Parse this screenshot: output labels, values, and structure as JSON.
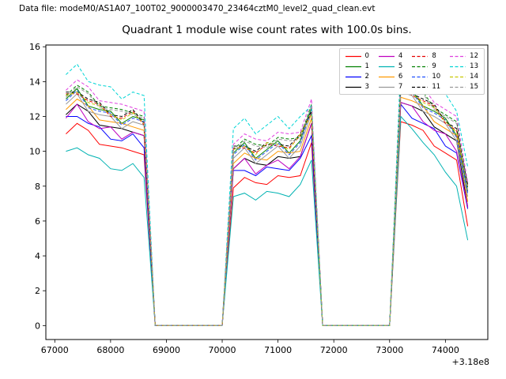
{
  "header": {
    "data_file_label": "Data file: modeM0/AS1A07_100T02_9000003470_23464cztM0_level2_quad_clean.evt"
  },
  "chart_data": {
    "type": "line",
    "title": "Quadrant 1 module wise count rates with 100.0s bins.",
    "xlabel": "",
    "ylabel": "",
    "x_offset_label": "+3.18e8",
    "xlim": [
      66840,
      74760
    ],
    "ylim": [
      -0.8,
      16.1
    ],
    "x_ticks": [
      67000,
      68000,
      69000,
      70000,
      71000,
      72000,
      73000,
      74000
    ],
    "y_ticks": [
      0,
      2,
      4,
      6,
      8,
      10,
      12,
      14,
      16
    ],
    "grid": false,
    "legend_position": "upper right",
    "legend_columns": 4,
    "x": [
      67200,
      67400,
      67600,
      67800,
      68000,
      68200,
      68400,
      68600,
      68800,
      69000,
      69200,
      69400,
      69600,
      69800,
      70000,
      70200,
      70400,
      70600,
      70800,
      71000,
      71200,
      71400,
      71600,
      71800,
      72000,
      72200,
      72400,
      72600,
      72800,
      73000,
      73200,
      73400,
      73600,
      73800,
      74000,
      74200,
      74400
    ],
    "series": [
      {
        "name": "0",
        "color": "#ff0000",
        "dash": "solid",
        "values": [
          11.0,
          11.6,
          11.2,
          10.4,
          10.3,
          10.2,
          10.0,
          9.8,
          0,
          0,
          0,
          0,
          0,
          0,
          0,
          7.9,
          8.5,
          8.2,
          8.1,
          8.6,
          8.5,
          8.6,
          10.5,
          0,
          0,
          0,
          0,
          0,
          0,
          0,
          11.7,
          11.5,
          11.2,
          10.3,
          9.9,
          9.5,
          5.7
        ]
      },
      {
        "name": "1",
        "color": "#008000",
        "dash": "solid",
        "values": [
          13.0,
          13.6,
          12.6,
          12.4,
          12.3,
          11.6,
          12.0,
          11.8,
          0,
          0,
          0,
          0,
          0,
          0,
          0,
          9.9,
          10.5,
          9.6,
          10.1,
          10.6,
          9.9,
          10.6,
          12.5,
          0,
          0,
          0,
          0,
          0,
          0,
          0,
          13.7,
          13.5,
          12.6,
          12.3,
          11.9,
          10.9,
          7.7
        ]
      },
      {
        "name": "2",
        "color": "#0000ff",
        "dash": "solid",
        "values": [
          12.0,
          12.0,
          11.6,
          11.4,
          10.7,
          10.6,
          11.0,
          10.2,
          0,
          0,
          0,
          0,
          0,
          0,
          0,
          8.9,
          8.9,
          8.6,
          9.1,
          9.0,
          8.9,
          9.6,
          10.9,
          0,
          0,
          0,
          0,
          0,
          0,
          0,
          12.7,
          11.9,
          11.6,
          11.3,
          10.3,
          9.9,
          6.7
        ]
      },
      {
        "name": "3",
        "color": "#000000",
        "dash": "solid",
        "values": [
          12.1,
          12.7,
          12.3,
          11.5,
          11.4,
          11.3,
          11.1,
          10.9,
          0,
          0,
          0,
          0,
          0,
          0,
          0,
          9.0,
          9.6,
          9.3,
          9.2,
          9.7,
          9.6,
          9.7,
          11.6,
          0,
          0,
          0,
          0,
          0,
          0,
          0,
          12.8,
          12.6,
          12.3,
          11.4,
          11.0,
          10.6,
          6.8
        ]
      },
      {
        "name": "4",
        "color": "#bf00bf",
        "dash": "solid",
        "values": [
          11.9,
          12.7,
          11.7,
          11.3,
          11.4,
          10.7,
          11.1,
          10.9,
          0,
          0,
          0,
          0,
          0,
          0,
          0,
          9.0,
          9.6,
          8.7,
          9.2,
          9.5,
          9.0,
          9.7,
          11.6,
          0,
          0,
          0,
          0,
          0,
          0,
          0,
          12.8,
          12.6,
          11.7,
          11.2,
          11.0,
          10.0,
          6.8
        ]
      },
      {
        "name": "5",
        "color": "#00b2b2",
        "dash": "solid",
        "values": [
          10.0,
          10.2,
          9.8,
          9.6,
          9.0,
          8.9,
          9.3,
          8.5,
          0,
          0,
          0,
          0,
          0,
          0,
          0,
          7.4,
          7.6,
          7.2,
          7.7,
          7.6,
          7.4,
          8.1,
          9.5,
          0,
          0,
          0,
          0,
          0,
          0,
          0,
          12.0,
          11.3,
          10.5,
          9.8,
          8.8,
          8.0,
          4.9
        ]
      },
      {
        "name": "6",
        "color": "#ff9900",
        "dash": "solid",
        "values": [
          12.4,
          13.0,
          12.6,
          11.8,
          11.7,
          11.6,
          11.4,
          11.2,
          0,
          0,
          0,
          0,
          0,
          0,
          0,
          9.3,
          9.9,
          9.6,
          9.5,
          10.0,
          9.9,
          10.0,
          11.9,
          0,
          0,
          0,
          0,
          0,
          0,
          0,
          13.1,
          12.9,
          12.6,
          11.7,
          11.3,
          10.9,
          7.1
        ]
      },
      {
        "name": "7",
        "color": "#999999",
        "dash": "solid",
        "values": [
          12.7,
          13.3,
          12.3,
          12.1,
          12.0,
          11.3,
          11.7,
          11.5,
          0,
          0,
          0,
          0,
          0,
          0,
          0,
          9.6,
          10.2,
          9.3,
          9.8,
          10.3,
          9.6,
          10.3,
          12.2,
          0,
          0,
          0,
          0,
          0,
          0,
          0,
          13.4,
          13.2,
          12.3,
          12.0,
          11.6,
          10.6,
          7.4
        ]
      },
      {
        "name": "8",
        "color": "#e60000",
        "dash": "dashed",
        "values": [
          13.3,
          13.3,
          12.9,
          12.7,
          12.0,
          11.9,
          12.3,
          11.5,
          0,
          0,
          0,
          0,
          0,
          0,
          0,
          10.2,
          10.2,
          9.9,
          10.4,
          10.3,
          10.2,
          10.9,
          12.2,
          0,
          0,
          0,
          0,
          0,
          0,
          0,
          14.0,
          13.2,
          12.9,
          12.6,
          11.6,
          11.2,
          8.0
        ]
      },
      {
        "name": "9",
        "color": "#008000",
        "dash": "dashed",
        "values": [
          13.2,
          13.8,
          13.4,
          12.6,
          12.5,
          12.4,
          12.2,
          12.0,
          0,
          0,
          0,
          0,
          0,
          0,
          0,
          10.1,
          10.7,
          10.4,
          10.3,
          10.8,
          10.7,
          10.8,
          12.7,
          0,
          0,
          0,
          0,
          0,
          0,
          0,
          13.9,
          13.7,
          13.4,
          12.5,
          12.1,
          11.7,
          7.9
        ]
      },
      {
        "name": "10",
        "color": "#1f50ff",
        "dash": "dashed",
        "values": [
          12.9,
          13.5,
          12.5,
          12.3,
          12.2,
          11.5,
          11.9,
          11.7,
          0,
          0,
          0,
          0,
          0,
          0,
          0,
          9.8,
          10.4,
          9.5,
          10.0,
          10.5,
          9.8,
          10.5,
          12.4,
          0,
          0,
          0,
          0,
          0,
          0,
          0,
          13.6,
          13.4,
          12.5,
          12.2,
          11.8,
          10.8,
          7.6
        ]
      },
      {
        "name": "11",
        "color": "#000000",
        "dash": "dashed",
        "values": [
          13.4,
          13.4,
          13.0,
          12.8,
          12.1,
          12.0,
          12.4,
          11.6,
          0,
          0,
          0,
          0,
          0,
          0,
          0,
          10.3,
          10.3,
          10.0,
          10.5,
          10.4,
          10.3,
          11.0,
          12.3,
          0,
          0,
          0,
          0,
          0,
          0,
          0,
          14.1,
          13.3,
          13.0,
          12.7,
          11.7,
          11.3,
          8.1
        ]
      },
      {
        "name": "12",
        "color": "#e040e0",
        "dash": "dashed",
        "values": [
          13.5,
          14.1,
          13.7,
          12.9,
          12.8,
          12.7,
          12.5,
          12.3,
          0,
          0,
          0,
          0,
          0,
          0,
          0,
          10.4,
          11.0,
          10.7,
          10.6,
          11.1,
          11.0,
          11.1,
          13.0,
          0,
          0,
          0,
          0,
          0,
          0,
          0,
          14.2,
          14.0,
          13.7,
          12.8,
          12.4,
          12.0,
          8.2
        ]
      },
      {
        "name": "13",
        "color": "#00d5d5",
        "dash": "dashed",
        "values": [
          14.4,
          15.0,
          14.0,
          13.8,
          13.7,
          13.0,
          13.4,
          13.2,
          0,
          0,
          0,
          0,
          0,
          0,
          0,
          11.3,
          11.9,
          11.0,
          11.5,
          12.0,
          11.3,
          12.0,
          12.6,
          0,
          0,
          0,
          0,
          0,
          0,
          0,
          15.1,
          14.9,
          14.0,
          13.7,
          13.3,
          12.3,
          9.1
        ]
      },
      {
        "name": "14",
        "color": "#c8c800",
        "dash": "dashed",
        "values": [
          13.2,
          13.4,
          12.8,
          12.6,
          12.1,
          11.8,
          12.2,
          11.6,
          0,
          0,
          0,
          0,
          0,
          0,
          0,
          10.1,
          10.3,
          9.8,
          10.5,
          10.4,
          10.1,
          11.0,
          12.1,
          0,
          0,
          0,
          0,
          0,
          0,
          0,
          13.9,
          13.3,
          12.8,
          12.5,
          11.7,
          11.1,
          7.9
        ]
      },
      {
        "name": "15",
        "color": "#999999",
        "dash": "dashed",
        "values": [
          13.1,
          13.7,
          13.3,
          12.5,
          12.4,
          12.3,
          12.1,
          11.9,
          0,
          0,
          0,
          0,
          0,
          0,
          0,
          10.0,
          10.6,
          10.3,
          10.2,
          10.7,
          10.6,
          10.7,
          12.6,
          0,
          0,
          0,
          0,
          0,
          0,
          0,
          13.8,
          13.6,
          13.3,
          12.4,
          12.0,
          11.6,
          7.8
        ]
      }
    ]
  }
}
